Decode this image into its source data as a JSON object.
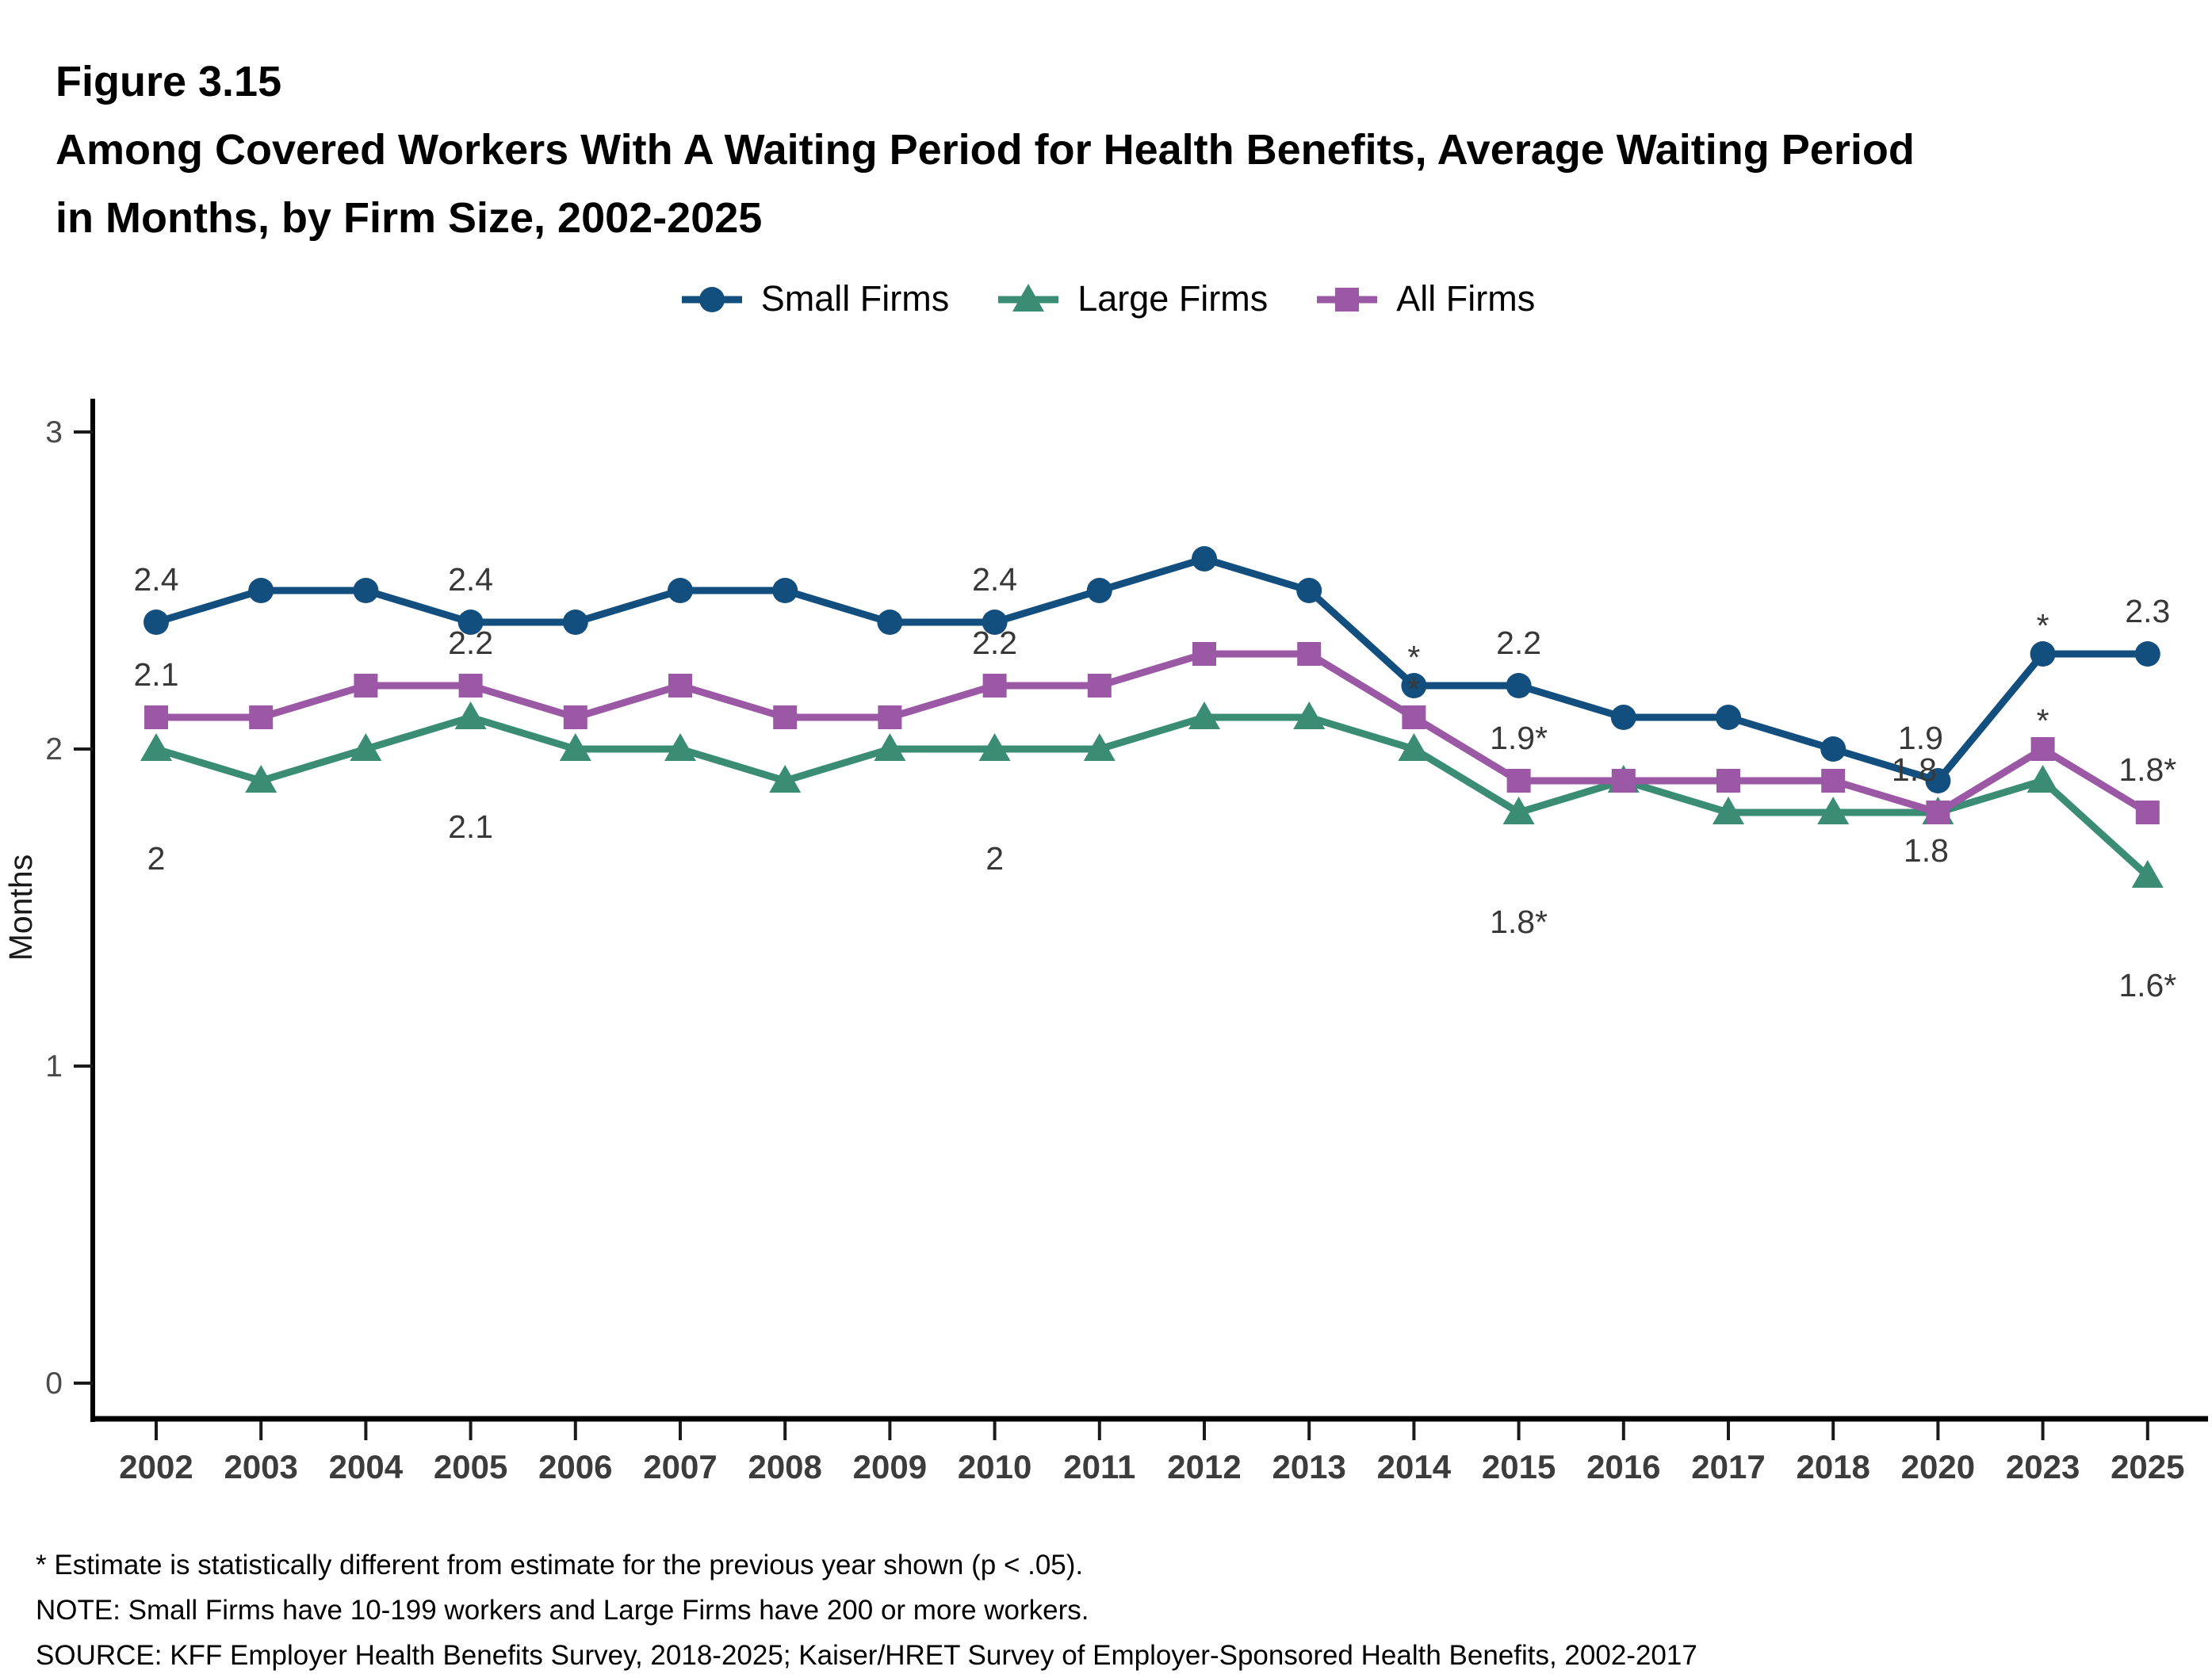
{
  "header": {
    "figure_label": "Figure 3.15",
    "title_line1": "Among Covered Workers With A Waiting Period for Health Benefits, Average Waiting Period",
    "title_line2": "in Months, by Firm Size, 2002-2025"
  },
  "legend": {
    "items": [
      {
        "label": "Small Firms",
        "marker": "circle",
        "color": "#134F7E"
      },
      {
        "label": "Large Firms",
        "marker": "triangle",
        "color": "#3A8C75"
      },
      {
        "label": "All Firms",
        "marker": "square",
        "color": "#9B58A5"
      }
    ]
  },
  "chart_data": {
    "type": "line",
    "categories": [
      "2002",
      "2003",
      "2004",
      "2005",
      "2006",
      "2007",
      "2008",
      "2009",
      "2010",
      "2011",
      "2012",
      "2013",
      "2014",
      "2015",
      "2016",
      "2017",
      "2018",
      "2020",
      "2023",
      "2025"
    ],
    "ylabel": "Months",
    "yticks": [
      0,
      1,
      2,
      3
    ],
    "ylim": [
      0,
      3.1
    ],
    "grid": false,
    "legend_position": "top",
    "title": "Among Covered Workers With A Waiting Period for Health Benefits, Average Waiting Period in Months, by Firm Size, 2002-2025",
    "series": [
      {
        "name": "Small Firms",
        "marker": "circle",
        "color": "#134F7E",
        "label_side": "above",
        "values": [
          2.4,
          2.5,
          2.5,
          2.4,
          2.4,
          2.5,
          2.5,
          2.4,
          2.4,
          2.5,
          2.6,
          2.5,
          2.2,
          2.2,
          2.1,
          2.1,
          2.0,
          1.9,
          2.3,
          2.3
        ],
        "point_labels": {
          "2002": "2.4",
          "2005": "2.4",
          "2010": "2.4",
          "2014": "*",
          "2015": "2.2",
          "2020": "1.9",
          "2023": "*",
          "2025": "2.3"
        }
      },
      {
        "name": "Large Firms",
        "marker": "triangle",
        "color": "#3A8C75",
        "label_side": "below",
        "values": [
          2.0,
          1.9,
          2.0,
          2.1,
          2.0,
          2.0,
          1.9,
          2.0,
          2.0,
          2.0,
          2.1,
          2.1,
          2.0,
          1.8,
          1.9,
          1.8,
          1.8,
          1.8,
          1.9,
          1.6
        ],
        "point_labels": {
          "2002": "2",
          "2005": "2.1",
          "2010": "2",
          "2015": "1.8*",
          "2020": "1.8",
          "2025": "1.6*"
        }
      },
      {
        "name": "All Firms",
        "marker": "square",
        "color": "#9B58A5",
        "label_side": "above",
        "values": [
          2.1,
          2.1,
          2.2,
          2.2,
          2.1,
          2.2,
          2.1,
          2.1,
          2.2,
          2.2,
          2.3,
          2.3,
          2.1,
          1.9,
          1.9,
          1.9,
          1.9,
          1.8,
          2.0,
          1.8
        ],
        "point_labels": {
          "2002": "2.1",
          "2005": "2.2",
          "2010": "2.2",
          "2014": "*",
          "2015": "1.9*",
          "2020": "1.8",
          "2023": "*",
          "2025": "1.8*"
        }
      }
    ]
  },
  "footnotes": [
    "* Estimate is statistically different from estimate for the previous year shown (p < .05).",
    "NOTE: Small Firms have 10-199 workers and Large Firms have 200 or more workers.",
    "SOURCE: KFF Employer Health Benefits Survey, 2018-2025; Kaiser/HRET Survey of Employer-Sponsored Health Benefits, 2002-2017"
  ]
}
